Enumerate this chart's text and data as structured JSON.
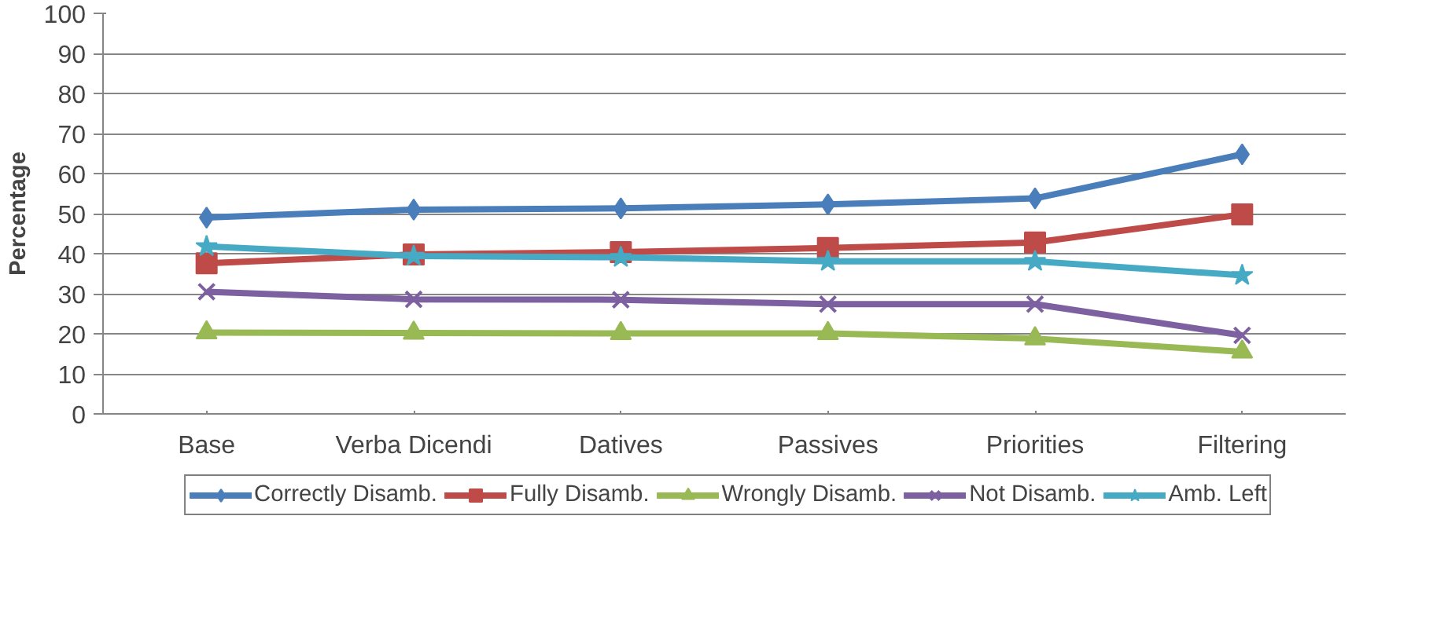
{
  "chart_data": {
    "type": "line",
    "ylabel": "Percentage",
    "categories": [
      "Base",
      "Verba Dicendi",
      "Datives",
      "Passives",
      "Priorities",
      "Filtering"
    ],
    "ylim": [
      0,
      100
    ],
    "yticks": [
      0,
      10,
      20,
      30,
      40,
      50,
      60,
      70,
      80,
      90,
      100
    ],
    "grid": "y",
    "legend": "bottom",
    "line_style": "solid",
    "series": [
      {
        "name": "Correctly Disamb.",
        "color": "#4a7ebb",
        "marker": "diamond",
        "values": [
          49,
          51,
          51.3,
          52.3,
          53.8,
          64.8
        ]
      },
      {
        "name": "Fully Disamb.",
        "color": "#be4b48",
        "marker": "square",
        "values": [
          37.6,
          39.8,
          40.4,
          41.4,
          42.8,
          49.8
        ]
      },
      {
        "name": "Wrongly Disamb.",
        "color": "#98b954",
        "marker": "triangle",
        "values": [
          20.3,
          20.2,
          20.1,
          20.1,
          18.8,
          15.5
        ]
      },
      {
        "name": "Not Disamb.",
        "color": "#7d60a0",
        "marker": "cross",
        "values": [
          30.5,
          28.6,
          28.5,
          27.4,
          27.4,
          19.6
        ]
      },
      {
        "name": "Amb. Left",
        "color": "#46aac5",
        "marker": "star",
        "values": [
          41.8,
          39.4,
          39.1,
          38.1,
          38.1,
          34.6
        ]
      }
    ]
  }
}
